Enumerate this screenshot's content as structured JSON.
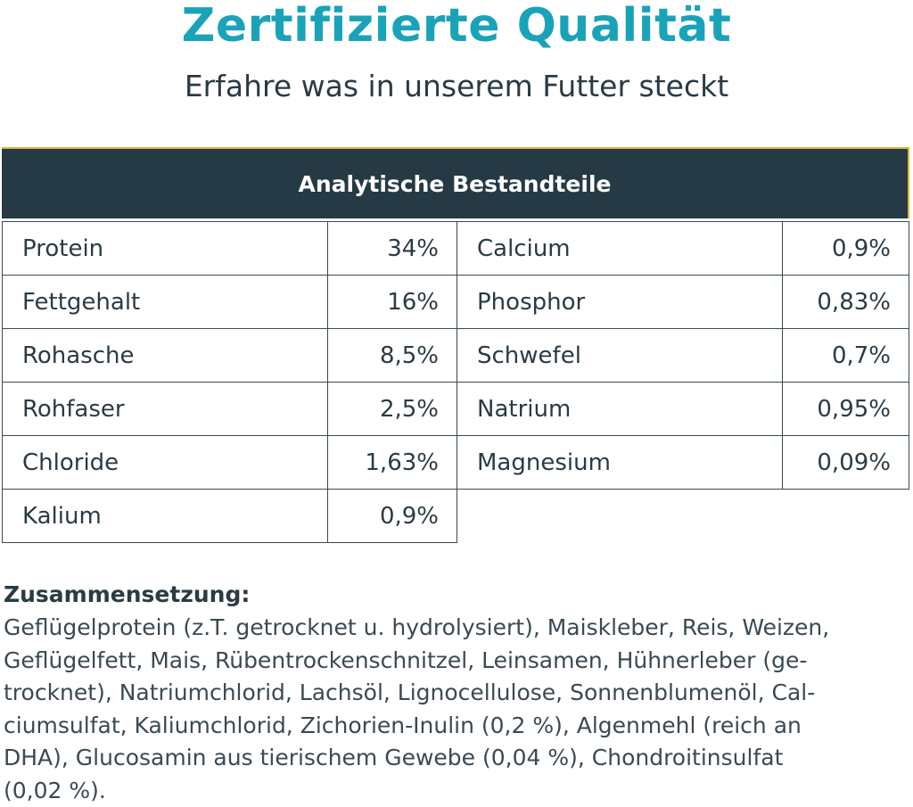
{
  "title": "Zertifizierte Qualität",
  "subtitle": "Erfahre was in unserem Futter steckt",
  "table": {
    "header": "Analytische Bestandteile",
    "left": [
      {
        "name": "Protein",
        "value": "34%"
      },
      {
        "name": "Fettgehalt",
        "value": "16%"
      },
      {
        "name": "Rohasche",
        "value": "8,5%"
      },
      {
        "name": "Rohfaser",
        "value": "2,5%"
      },
      {
        "name": "Chloride",
        "value": "1,63%"
      },
      {
        "name": "Kalium",
        "value": "0,9%"
      }
    ],
    "right": [
      {
        "name": "Calcium",
        "value": "0,9%"
      },
      {
        "name": "Phosphor",
        "value": "0,83%"
      },
      {
        "name": "Schwefel",
        "value": "0,7%"
      },
      {
        "name": "Natrium",
        "value": "0,95%"
      },
      {
        "name": "Magnesium",
        "value": "0,09%"
      }
    ]
  },
  "composition": {
    "heading": "Zusammensetzung:",
    "lines": [
      "Geflügelprotein (z.T. getrocknet u. hydrolysiert), Maiskleber, Reis, Weizen,",
      "Geflügelfett, Mais, Rübentrockenschnitzel, Leinsamen, Hühnerleber (ge-",
      "trocknet), Natriumchlorid, Lachsöl, Lignocellulose, Sonnenblumenöl, Cal-",
      "ciumsulfat, Kaliumchlorid, Zichorien-Inulin (0,2 %), Algenmehl (reich an",
      "DHA), Glucosamin aus tierischem Gewebe (0,04 %), Chondroitinsulfat",
      "(0,02 %)."
    ]
  },
  "colors": {
    "title": "#1aa3b8",
    "header_bg": "#263a45",
    "header_accent": "#e3b23c",
    "text": "#2a3b44"
  }
}
